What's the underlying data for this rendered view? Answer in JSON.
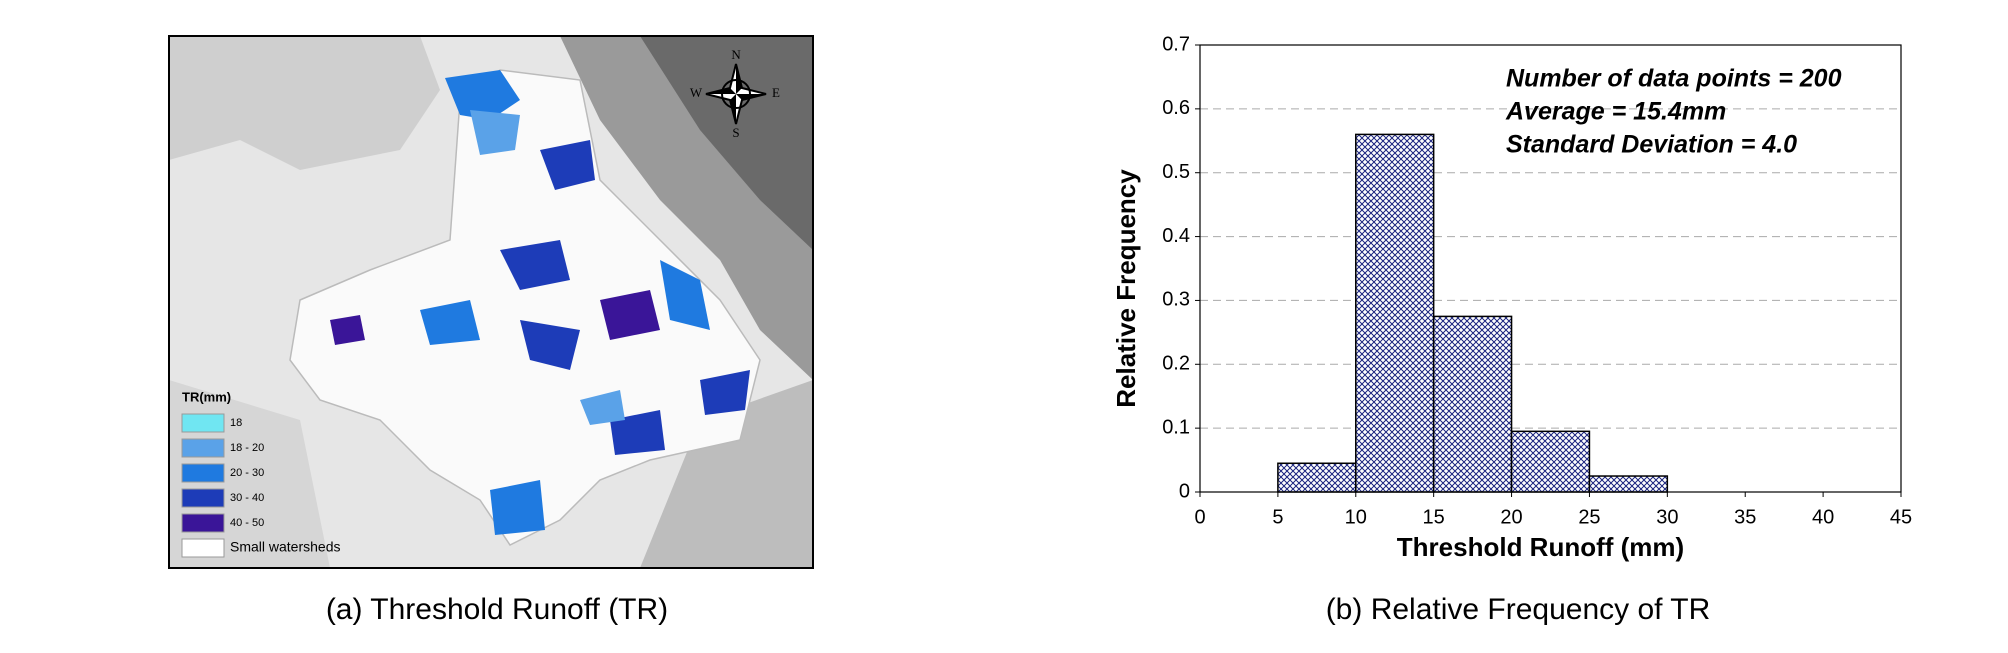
{
  "map": {
    "caption": "(a) Threshold Runoff (TR)",
    "compass": {
      "n": "N",
      "e": "E",
      "s": "S",
      "w": "W"
    },
    "legend_title": "TR(mm)",
    "legend": [
      {
        "label": "18",
        "color": "#70e6f2"
      },
      {
        "label": "18 - 20",
        "color": "#5aa2e8"
      },
      {
        "label": "20 - 30",
        "color": "#1f7ae0"
      },
      {
        "label": "30 - 40",
        "color": "#1d3cb8"
      },
      {
        "label": "40 - 50",
        "color": "#3a1598"
      },
      {
        "label": "Small watersheds",
        "color": "#ffffff"
      }
    ]
  },
  "chart_data": {
    "type": "histogram",
    "caption": "(b) Relative Frequency of TR",
    "xlabel": "Threshold Runoff (mm)",
    "ylabel": "Relative Frequency",
    "annotations": [
      "Number of data points = 200",
      "Average = 15.4mm",
      "Standard Deviation = 4.0"
    ],
    "bins": [
      5,
      10,
      15,
      20,
      25,
      30
    ],
    "values": [
      0.045,
      0.56,
      0.275,
      0.095,
      0.025
    ],
    "color": "#1a237e",
    "xlim": [
      0,
      45
    ],
    "xticks": [
      0,
      5,
      10,
      15,
      20,
      25,
      30,
      35,
      40,
      45
    ],
    "ylim": [
      0,
      0.7
    ],
    "yticks": [
      0,
      0.1,
      0.2,
      0.3,
      0.4,
      0.5,
      0.6,
      0.7
    ],
    "grid": true
  }
}
